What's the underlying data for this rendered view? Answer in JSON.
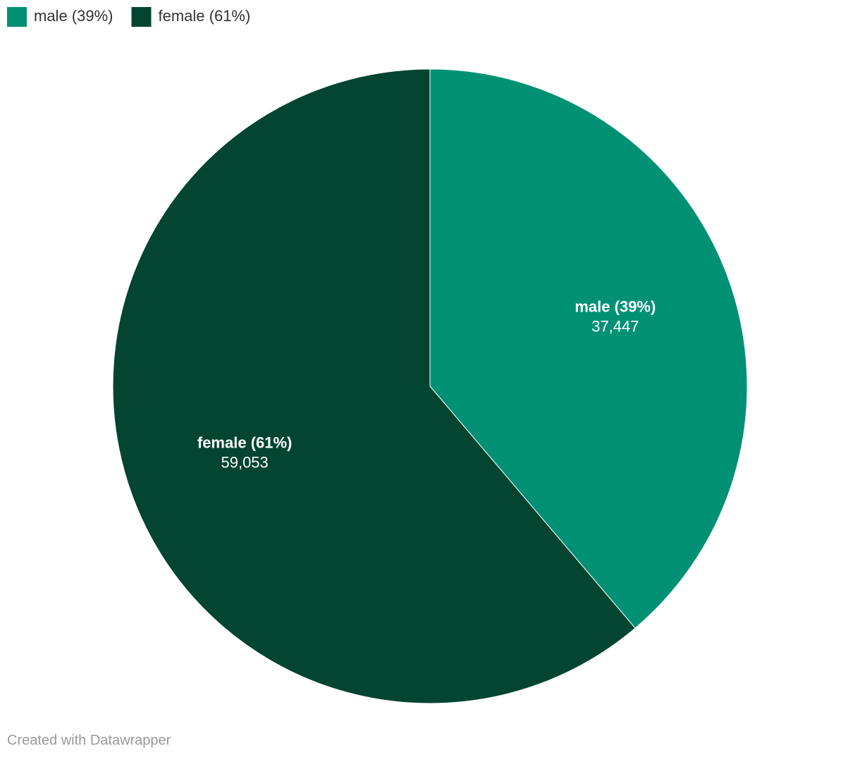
{
  "chart_data": {
    "type": "pie",
    "categories": [
      "male (39%)",
      "female (61%)"
    ],
    "values": [
      37447,
      59053
    ],
    "value_labels": [
      "37,447",
      "59,053"
    ],
    "colors": [
      "#009175",
      "#034531"
    ],
    "legend": "top-left",
    "footer": "Created with Datawrapper"
  }
}
